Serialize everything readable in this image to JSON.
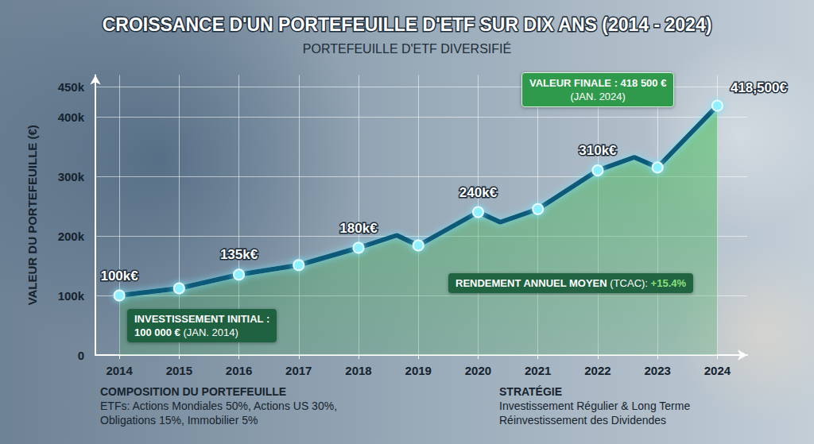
{
  "chart_data": {
    "type": "line",
    "title": "CROISSANCE D'UN PORTEFEUILLE D'ETF SUR DIX ANS (2014 - 2024)",
    "subtitle": "PORTEFEUILLE D'ETF DIVERSIFIÉ",
    "ylabel": "VALEUR DU PORTEFEUILLE (€)",
    "x": [
      2014,
      2015,
      2016,
      2017,
      2018,
      2018.64,
      2019,
      2020,
      2020.37,
      2021,
      2022,
      2022.61,
      2023,
      2024
    ],
    "values": [
      100000,
      112000,
      135000,
      151000,
      180000,
      201000,
      184000,
      240000,
      223000,
      245000,
      310000,
      332000,
      315000,
      418500
    ],
    "value_labels": [
      "100k€",
      null,
      "135k€",
      null,
      "180k€",
      null,
      null,
      "240k€",
      null,
      null,
      "310k€",
      null,
      null,
      "418,500€"
    ],
    "color": "#0e5a78",
    "marker": "circle",
    "line_style": "solid",
    "data_labels": true,
    "grid": true,
    "xlim": [
      2013.6,
      2024.5
    ],
    "xticks": [
      2014,
      2015,
      2016,
      2017,
      2018,
      2019,
      2020,
      2021,
      2022,
      2023,
      2024
    ],
    "ylim": [
      0,
      470000
    ],
    "yticks": [
      0,
      {
        "value": 100000,
        "label": "100k"
      },
      {
        "value": 200000,
        "label": "200k"
      },
      {
        "value": 300000,
        "label": "300k"
      },
      {
        "value": 400000,
        "label": "400k"
      },
      {
        "value": 450000,
        "label": "450k"
      }
    ],
    "annotations": [
      {
        "text": "VALEUR FINALE : 418 500 €",
        "note": "(JAN. 2024)"
      },
      {
        "text": "INVESTISSEMENT INITIAL :",
        "value": "100 000 €",
        "note": "(JAN. 2014)"
      },
      {
        "text": "RENDEMENT ANNUEL MOYEN",
        "note": "(TCAC):",
        "value": "+15.4%"
      }
    ],
    "footer": [
      {
        "title": "COMPOSITION DU PORTEFEUILLE",
        "lines": [
          "ETFs: Actions Mondiales 50%, Actions US 30%,",
          "Obligations 15%, Immobilier 5%"
        ]
      },
      {
        "title": "STRATÉGIE",
        "lines": [
          "Investissement Régulier & Long Terme",
          "Réinvestissement des Dividendes"
        ]
      }
    ]
  }
}
